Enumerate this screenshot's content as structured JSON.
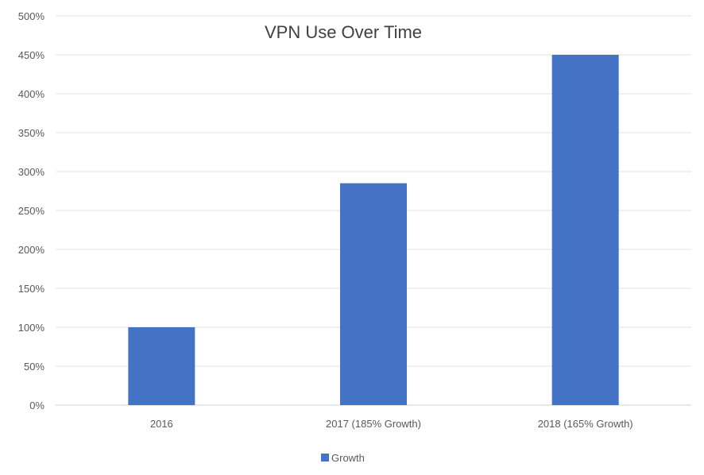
{
  "chart_data": {
    "type": "bar",
    "title": "VPN Use Over Time",
    "categories": [
      "2016",
      "2017 (185% Growth)",
      "2018 (165% Growth)"
    ],
    "series": [
      {
        "name": "Growth",
        "values": [
          100,
          285,
          450
        ],
        "color": "#4472c4"
      }
    ],
    "ylim": [
      0,
      500
    ],
    "y_ticks": [
      0,
      50,
      100,
      150,
      200,
      250,
      300,
      350,
      400,
      450,
      500
    ],
    "y_tick_labels": [
      "0%",
      "50%",
      "100%",
      "150%",
      "200%",
      "250%",
      "300%",
      "350%",
      "400%",
      "450%",
      "500%"
    ],
    "grid": true,
    "legend_position": "bottom",
    "xlabel": "",
    "ylabel": ""
  }
}
